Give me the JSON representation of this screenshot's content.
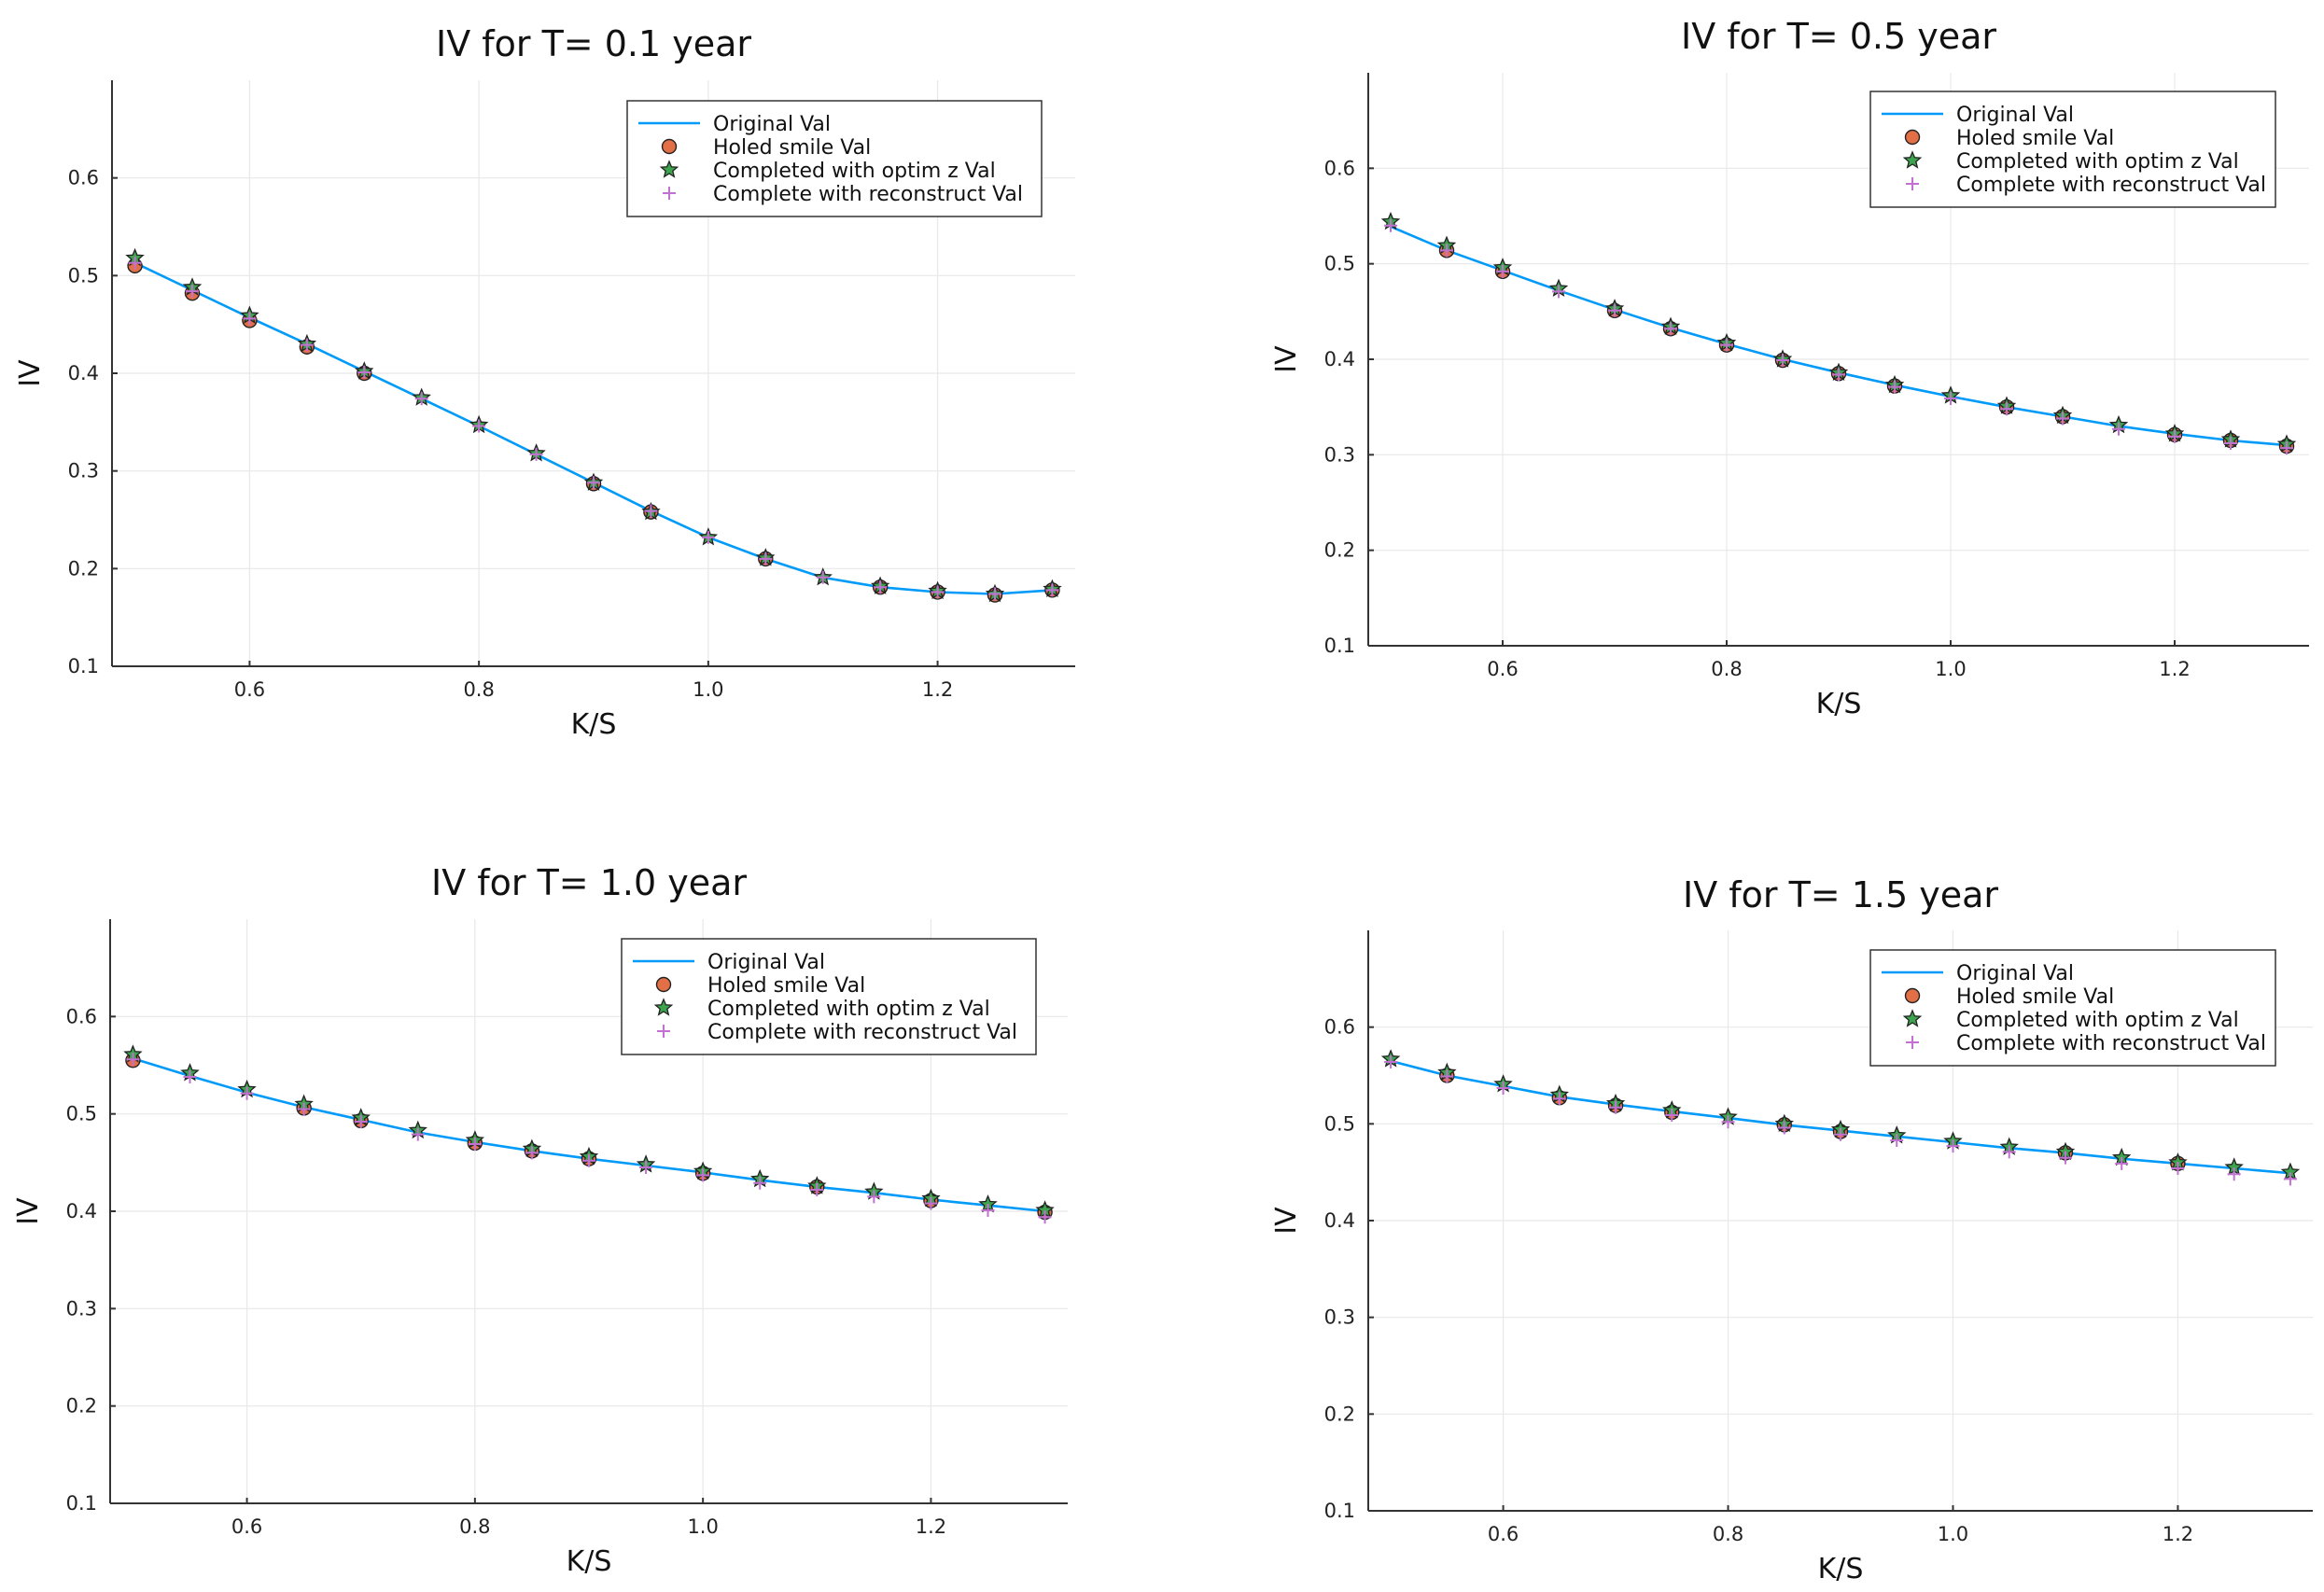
{
  "chart_data": [
    {
      "type": "line",
      "title": "IV for T= 0.1 year",
      "xlabel": "K/S",
      "ylabel": "IV",
      "xlim": [
        0.48,
        1.32
      ],
      "ylim": [
        0.1,
        0.7
      ],
      "x_ticks": [
        0.6,
        0.8,
        1.0,
        1.2
      ],
      "x_tick_labels": [
        "0.6",
        "0.8",
        "1.0",
        "1.2"
      ],
      "y_ticks": [
        0.1,
        0.2,
        0.3,
        0.4,
        0.5,
        0.6
      ],
      "y_tick_labels": [
        "0.1",
        "0.2",
        "0.3",
        "0.4",
        "0.5",
        "0.6"
      ],
      "grid": true,
      "legend_position": "top-right",
      "x": [
        0.5,
        0.55,
        0.6,
        0.65,
        0.7,
        0.75,
        0.8,
        0.85,
        0.9,
        0.95,
        1.0,
        1.05,
        1.1,
        1.15,
        1.2,
        1.25,
        1.3
      ],
      "series": [
        {
          "name": "Original Val",
          "kind": "line",
          "values": [
            0.513,
            0.485,
            0.457,
            0.43,
            0.402,
            0.374,
            0.346,
            0.317,
            0.288,
            0.259,
            0.232,
            0.21,
            0.191,
            0.181,
            0.176,
            0.174,
            0.178
          ]
        },
        {
          "name": "Holed smile Val",
          "kind": "circle",
          "x": [
            0.5,
            0.55,
            0.6,
            0.65,
            0.7,
            0.9,
            0.95,
            1.05,
            1.15,
            1.2,
            1.25,
            1.3
          ],
          "values": [
            0.51,
            0.482,
            0.454,
            0.427,
            0.4,
            0.287,
            0.258,
            0.21,
            0.181,
            0.176,
            0.173,
            0.178
          ]
        },
        {
          "name": "Completed with optim z Val",
          "kind": "star",
          "values": [
            0.518,
            0.488,
            0.459,
            0.43,
            0.402,
            0.375,
            0.347,
            0.318,
            0.288,
            0.258,
            0.232,
            0.211,
            0.191,
            0.182,
            0.177,
            0.174,
            0.179
          ]
        },
        {
          "name": "Complete with reconstruct Val",
          "kind": "cross",
          "values": [
            0.513,
            0.484,
            0.456,
            0.429,
            0.401,
            0.374,
            0.346,
            0.317,
            0.288,
            0.259,
            0.232,
            0.21,
            0.191,
            0.181,
            0.176,
            0.174,
            0.178
          ]
        }
      ]
    },
    {
      "type": "line",
      "title": "IV for T= 0.5 year",
      "xlabel": "K/S",
      "ylabel": "IV",
      "xlim": [
        0.48,
        1.32
      ],
      "ylim": [
        0.1,
        0.7
      ],
      "x_ticks": [
        0.6,
        0.8,
        1.0,
        1.2
      ],
      "x_tick_labels": [
        "0.6",
        "0.8",
        "1.0",
        "1.2"
      ],
      "y_ticks": [
        0.1,
        0.2,
        0.3,
        0.4,
        0.5,
        0.6
      ],
      "y_tick_labels": [
        "0.1",
        "0.2",
        "0.3",
        "0.4",
        "0.5",
        "0.6"
      ],
      "grid": true,
      "legend_position": "top-right",
      "x": [
        0.5,
        0.55,
        0.6,
        0.65,
        0.7,
        0.75,
        0.8,
        0.85,
        0.9,
        0.95,
        1.0,
        1.05,
        1.1,
        1.15,
        1.2,
        1.25,
        1.3
      ],
      "series": [
        {
          "name": "Original Val",
          "kind": "line",
          "values": [
            0.539,
            0.514,
            0.493,
            0.472,
            0.452,
            0.433,
            0.416,
            0.4,
            0.386,
            0.373,
            0.361,
            0.35,
            0.34,
            0.33,
            0.322,
            0.315,
            0.31
          ]
        },
        {
          "name": "Holed smile Val",
          "kind": "circle",
          "x": [
            0.55,
            0.6,
            0.7,
            0.75,
            0.8,
            0.85,
            0.9,
            0.95,
            1.05,
            1.1,
            1.2,
            1.25,
            1.3
          ],
          "values": [
            0.514,
            0.492,
            0.451,
            0.432,
            0.415,
            0.399,
            0.385,
            0.372,
            0.35,
            0.34,
            0.321,
            0.315,
            0.309
          ]
        },
        {
          "name": "Completed with optim z Val",
          "kind": "star",
          "values": [
            0.544,
            0.519,
            0.496,
            0.474,
            0.453,
            0.434,
            0.417,
            0.4,
            0.386,
            0.373,
            0.362,
            0.351,
            0.341,
            0.331,
            0.322,
            0.316,
            0.311
          ]
        },
        {
          "name": "Complete with reconstruct Val",
          "kind": "cross",
          "values": [
            0.54,
            0.514,
            0.492,
            0.471,
            0.451,
            0.432,
            0.415,
            0.399,
            0.384,
            0.371,
            0.359,
            0.348,
            0.338,
            0.327,
            0.319,
            0.312,
            0.307
          ]
        }
      ]
    },
    {
      "type": "line",
      "title": "IV for T= 1.0 year",
      "xlabel": "K/S",
      "ylabel": "IV",
      "xlim": [
        0.48,
        1.32
      ],
      "ylim": [
        0.1,
        0.7
      ],
      "x_ticks": [
        0.6,
        0.8,
        1.0,
        1.2
      ],
      "x_tick_labels": [
        "0.6",
        "0.8",
        "1.0",
        "1.2"
      ],
      "y_ticks": [
        0.1,
        0.2,
        0.3,
        0.4,
        0.5,
        0.6
      ],
      "y_tick_labels": [
        "0.1",
        "0.2",
        "0.3",
        "0.4",
        "0.5",
        "0.6"
      ],
      "grid": true,
      "legend_position": "top-right",
      "x": [
        0.5,
        0.55,
        0.6,
        0.65,
        0.7,
        0.75,
        0.8,
        0.85,
        0.9,
        0.95,
        1.0,
        1.05,
        1.1,
        1.15,
        1.2,
        1.25,
        1.3
      ],
      "series": [
        {
          "name": "Original Val",
          "kind": "line",
          "values": [
            0.557,
            0.539,
            0.522,
            0.507,
            0.494,
            0.481,
            0.471,
            0.462,
            0.454,
            0.447,
            0.44,
            0.432,
            0.425,
            0.419,
            0.412,
            0.406,
            0.4
          ]
        },
        {
          "name": "Holed smile Val",
          "kind": "circle",
          "x": [
            0.5,
            0.65,
            0.7,
            0.8,
            0.85,
            0.9,
            1.0,
            1.1,
            1.2,
            1.3
          ],
          "values": [
            0.555,
            0.506,
            0.493,
            0.47,
            0.462,
            0.454,
            0.439,
            0.425,
            0.411,
            0.399
          ]
        },
        {
          "name": "Completed with optim z Val",
          "kind": "star",
          "values": [
            0.561,
            0.542,
            0.525,
            0.51,
            0.496,
            0.483,
            0.473,
            0.464,
            0.456,
            0.448,
            0.441,
            0.433,
            0.426,
            0.42,
            0.413,
            0.407,
            0.401
          ]
        },
        {
          "name": "Complete with reconstruct Val",
          "kind": "cross",
          "values": [
            0.556,
            0.538,
            0.521,
            0.505,
            0.492,
            0.479,
            0.469,
            0.46,
            0.452,
            0.445,
            0.437,
            0.429,
            0.422,
            0.415,
            0.408,
            0.401,
            0.394
          ]
        }
      ]
    },
    {
      "type": "line",
      "title": "IV for T= 1.5 year",
      "xlabel": "K/S",
      "ylabel": "IV",
      "xlim": [
        0.48,
        1.32
      ],
      "ylim": [
        0.1,
        0.7
      ],
      "x_ticks": [
        0.6,
        0.8,
        1.0,
        1.2
      ],
      "x_tick_labels": [
        "0.6",
        "0.8",
        "1.0",
        "1.2"
      ],
      "y_ticks": [
        0.1,
        0.2,
        0.3,
        0.4,
        0.5,
        0.6
      ],
      "y_tick_labels": [
        "0.1",
        "0.2",
        "0.3",
        "0.4",
        "0.5",
        "0.6"
      ],
      "grid": true,
      "legend_position": "top-right",
      "x": [
        0.5,
        0.55,
        0.6,
        0.65,
        0.7,
        0.75,
        0.8,
        0.85,
        0.9,
        0.95,
        1.0,
        1.05,
        1.1,
        1.15,
        1.2,
        1.25,
        1.3
      ],
      "series": [
        {
          "name": "Original Val",
          "kind": "line",
          "values": [
            0.565,
            0.55,
            0.539,
            0.528,
            0.52,
            0.513,
            0.506,
            0.499,
            0.493,
            0.487,
            0.481,
            0.475,
            0.47,
            0.464,
            0.459,
            0.454,
            0.449
          ]
        },
        {
          "name": "Holed smile Val",
          "kind": "circle",
          "x": [
            0.55,
            0.65,
            0.7,
            0.75,
            0.85,
            0.9,
            1.1,
            1.2
          ],
          "values": [
            0.55,
            0.527,
            0.519,
            0.512,
            0.499,
            0.492,
            0.47,
            0.459
          ]
        },
        {
          "name": "Completed with optim z Val",
          "kind": "star",
          "values": [
            0.567,
            0.553,
            0.541,
            0.53,
            0.521,
            0.514,
            0.507,
            0.5,
            0.494,
            0.488,
            0.482,
            0.476,
            0.471,
            0.465,
            0.46,
            0.455,
            0.45
          ]
        },
        {
          "name": "Complete with reconstruct Val",
          "kind": "cross",
          "values": [
            0.564,
            0.549,
            0.537,
            0.526,
            0.517,
            0.509,
            0.502,
            0.496,
            0.489,
            0.483,
            0.477,
            0.471,
            0.465,
            0.459,
            0.454,
            0.448,
            0.443
          ]
        }
      ]
    }
  ],
  "colors": {
    "line": "#009af9",
    "circle": "#e26f46",
    "star": "#3da44d",
    "cross": "#c271d2"
  }
}
